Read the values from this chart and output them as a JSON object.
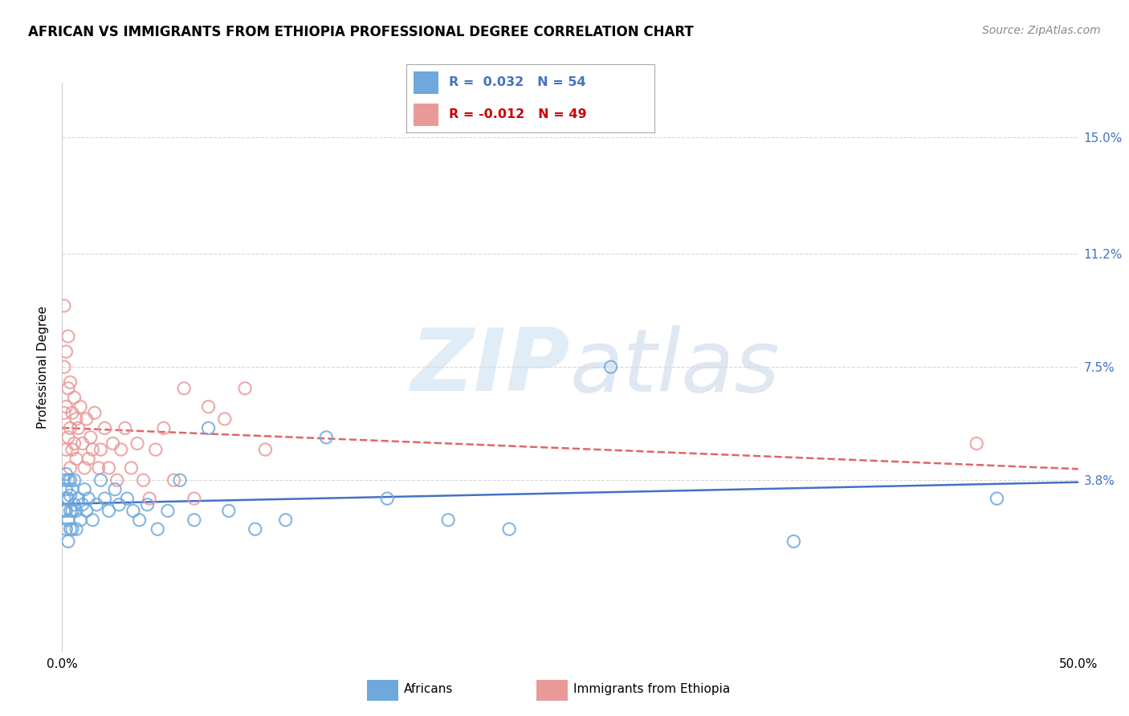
{
  "title": "AFRICAN VS IMMIGRANTS FROM ETHIOPIA PROFESSIONAL DEGREE CORRELATION CHART",
  "source": "Source: ZipAtlas.com",
  "ylabel": "Professional Degree",
  "ytick_values": [
    0.038,
    0.075,
    0.112,
    0.15
  ],
  "ytick_labels": [
    "3.8%",
    "7.5%",
    "11.2%",
    "15.0%"
  ],
  "xlim": [
    0.0,
    0.5
  ],
  "ylim": [
    -0.018,
    0.168
  ],
  "color_african": "#6fa8dc",
  "color_ethiopia": "#ea9999",
  "color_trendline_african": "#4472c4",
  "color_trendline_ethiopia": "#e06666",
  "africans_x": [
    0.001,
    0.001,
    0.001,
    0.002,
    0.002,
    0.002,
    0.002,
    0.003,
    0.003,
    0.003,
    0.003,
    0.004,
    0.004,
    0.004,
    0.004,
    0.005,
    0.005,
    0.005,
    0.006,
    0.006,
    0.007,
    0.007,
    0.008,
    0.009,
    0.01,
    0.011,
    0.012,
    0.013,
    0.015,
    0.017,
    0.019,
    0.021,
    0.023,
    0.026,
    0.028,
    0.032,
    0.035,
    0.038,
    0.042,
    0.047,
    0.052,
    0.058,
    0.065,
    0.072,
    0.082,
    0.095,
    0.11,
    0.13,
    0.16,
    0.19,
    0.22,
    0.27,
    0.36,
    0.46
  ],
  "africans_y": [
    0.038,
    0.032,
    0.028,
    0.04,
    0.035,
    0.028,
    0.022,
    0.038,
    0.032,
    0.025,
    0.018,
    0.038,
    0.033,
    0.028,
    0.022,
    0.035,
    0.028,
    0.022,
    0.038,
    0.03,
    0.028,
    0.022,
    0.032,
    0.025,
    0.03,
    0.035,
    0.028,
    0.032,
    0.025,
    0.03,
    0.038,
    0.032,
    0.028,
    0.035,
    0.03,
    0.032,
    0.028,
    0.025,
    0.03,
    0.022,
    0.028,
    0.038,
    0.025,
    0.055,
    0.028,
    0.022,
    0.025,
    0.052,
    0.032,
    0.025,
    0.022,
    0.075,
    0.018,
    0.032
  ],
  "ethiopia_x": [
    0.001,
    0.001,
    0.001,
    0.002,
    0.002,
    0.002,
    0.003,
    0.003,
    0.003,
    0.004,
    0.004,
    0.004,
    0.005,
    0.005,
    0.006,
    0.006,
    0.007,
    0.007,
    0.008,
    0.009,
    0.01,
    0.011,
    0.012,
    0.013,
    0.014,
    0.015,
    0.016,
    0.018,
    0.019,
    0.021,
    0.023,
    0.025,
    0.027,
    0.029,
    0.031,
    0.034,
    0.037,
    0.04,
    0.043,
    0.046,
    0.05,
    0.055,
    0.06,
    0.065,
    0.072,
    0.08,
    0.09,
    0.1,
    0.45
  ],
  "ethiopia_y": [
    0.06,
    0.075,
    0.095,
    0.048,
    0.062,
    0.08,
    0.052,
    0.068,
    0.085,
    0.055,
    0.07,
    0.042,
    0.06,
    0.048,
    0.065,
    0.05,
    0.058,
    0.045,
    0.055,
    0.062,
    0.05,
    0.042,
    0.058,
    0.045,
    0.052,
    0.048,
    0.06,
    0.042,
    0.048,
    0.055,
    0.042,
    0.05,
    0.038,
    0.048,
    0.055,
    0.042,
    0.05,
    0.038,
    0.032,
    0.048,
    0.055,
    0.038,
    0.068,
    0.032,
    0.062,
    0.058,
    0.068,
    0.048,
    0.05
  ],
  "background_color": "#ffffff",
  "grid_color": "#d8d8d8"
}
